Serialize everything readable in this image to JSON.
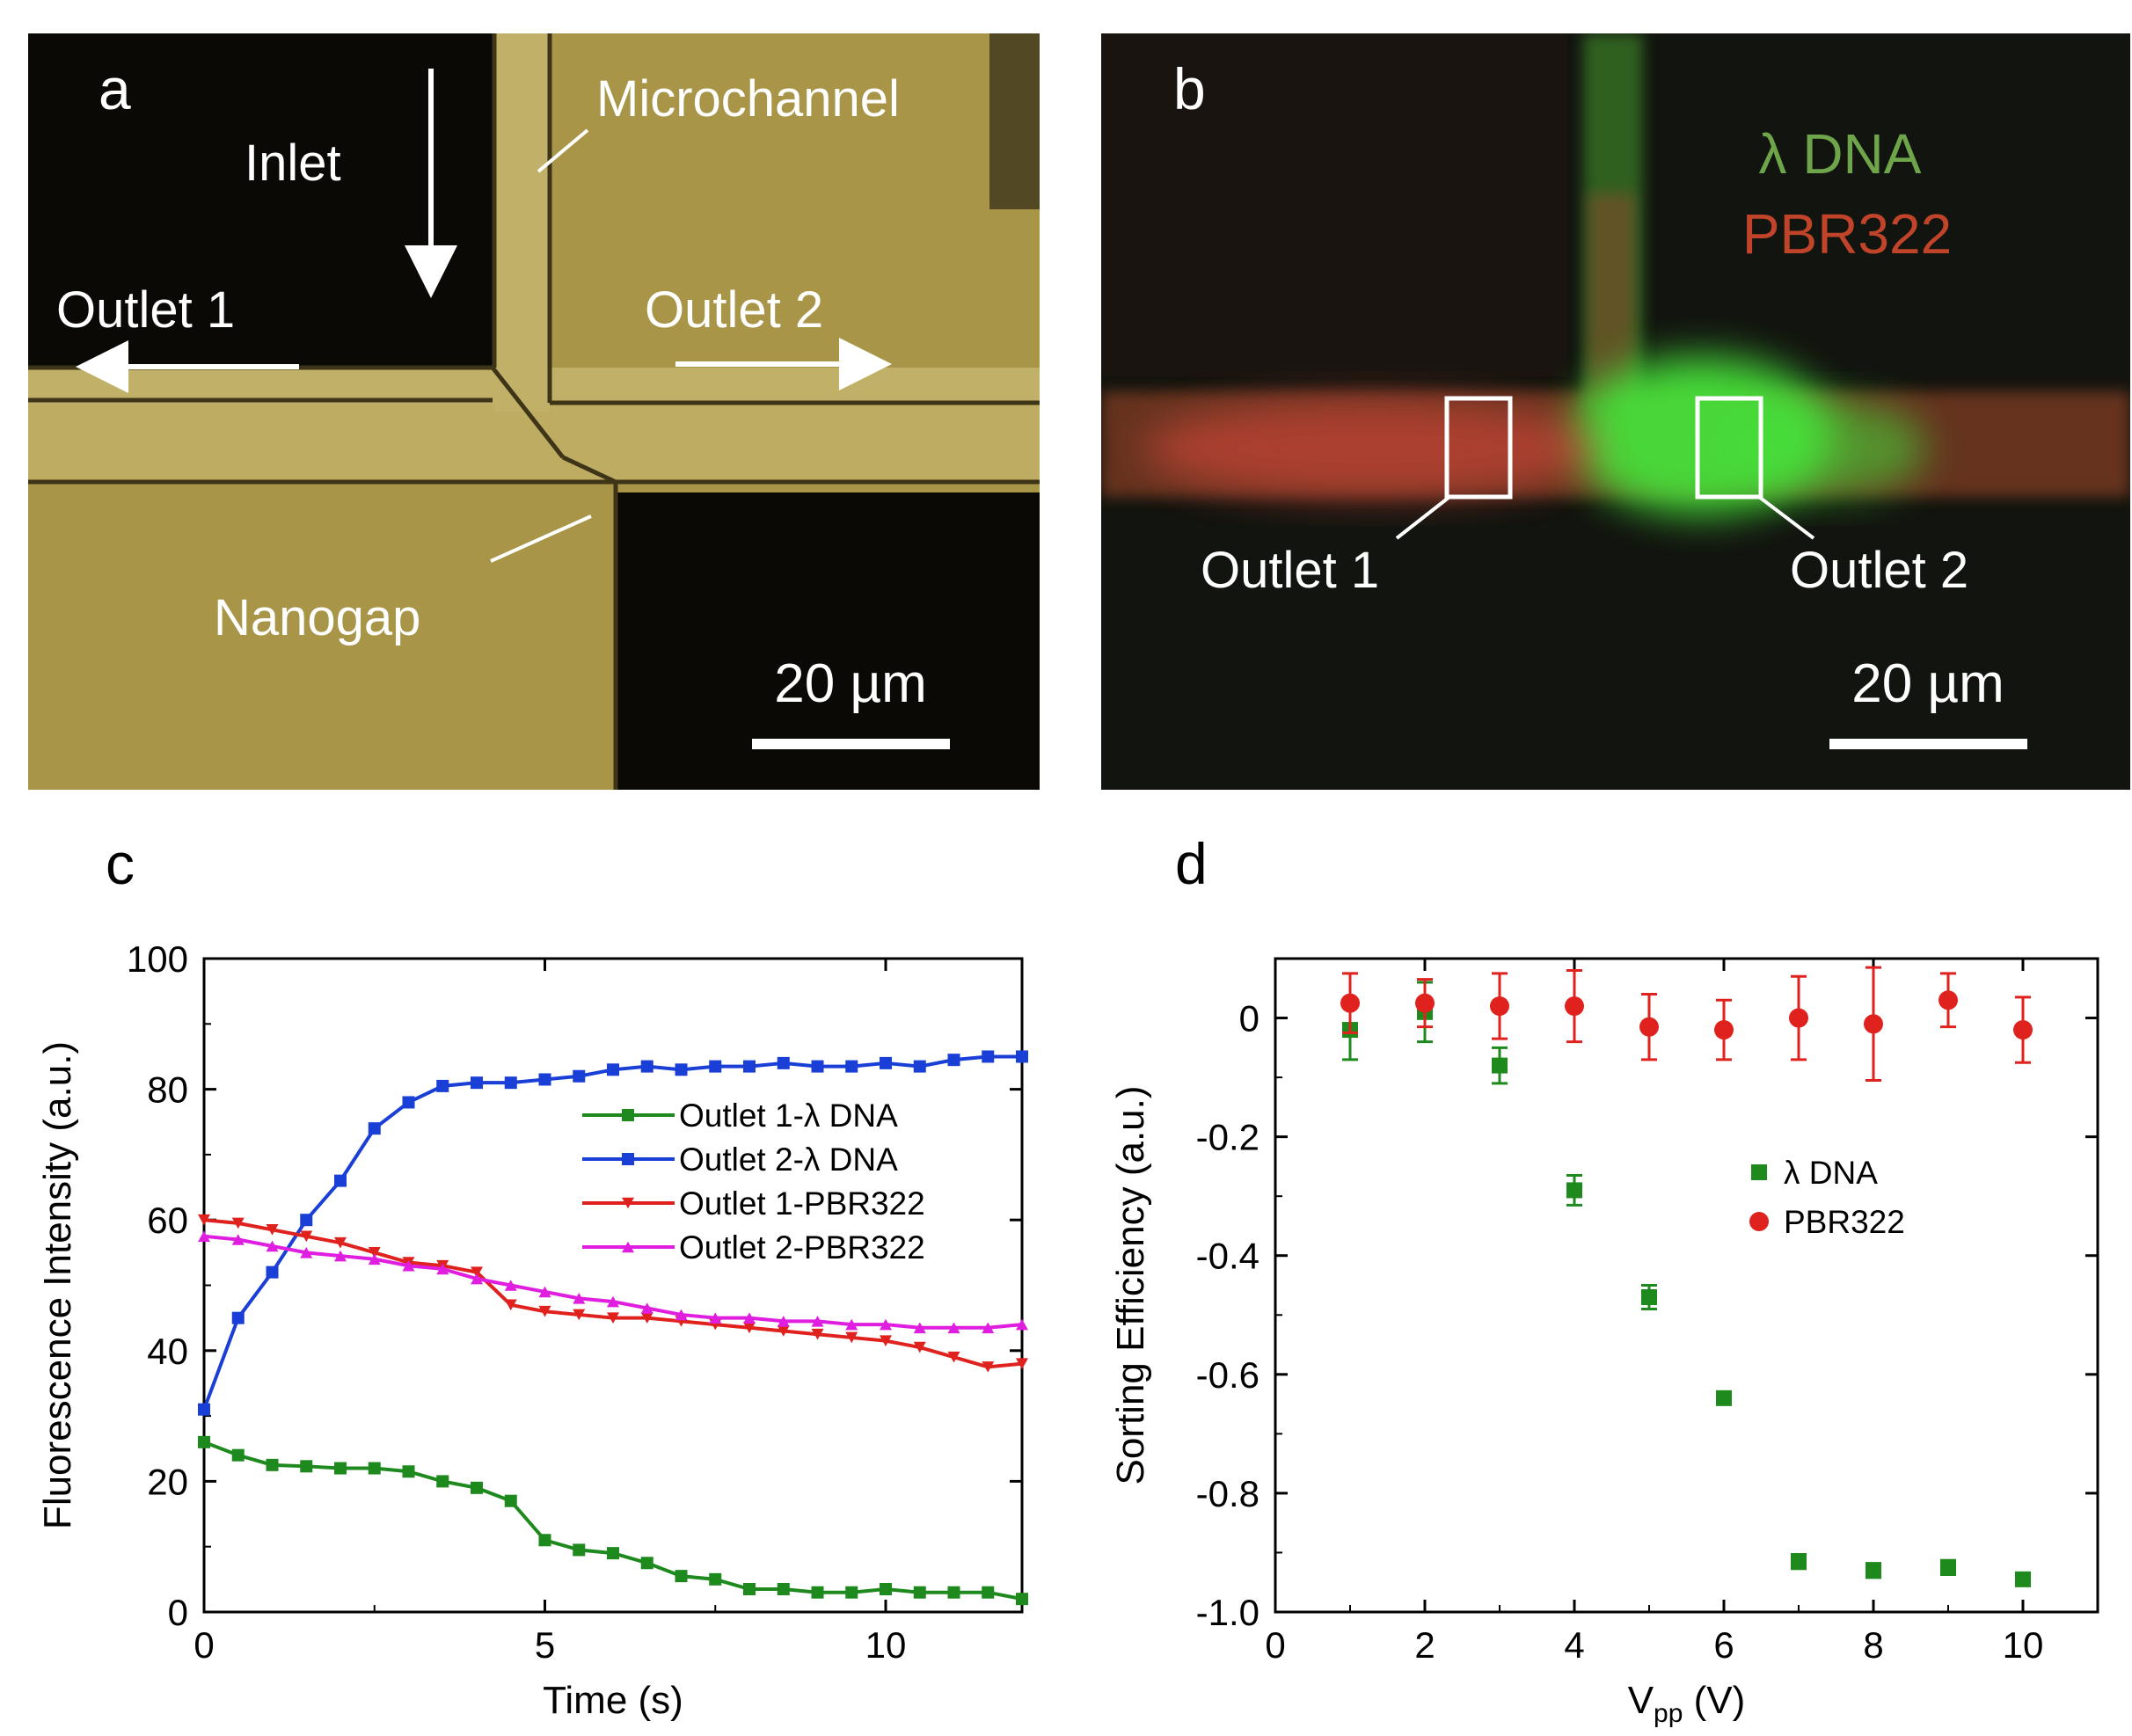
{
  "panels": {
    "a": {
      "letter": "a",
      "labels": {
        "inlet": "Inlet",
        "microchannel": "Microchannel",
        "outlet1": "Outlet 1",
        "outlet2": "Outlet 2",
        "nanogap": "Nanogap"
      },
      "scalebar": "20 µm",
      "colors": {
        "dark": "#0b0905",
        "chamber": "#a99548",
        "channel": "#c1b067",
        "edge": "#3e3518",
        "label": "#ffffff"
      }
    },
    "b": {
      "letter": "b",
      "legend": {
        "lambda": "λ DNA",
        "pbr": "PBR322"
      },
      "labels": {
        "outlet1": "Outlet 1",
        "outlet2": "Outlet 2"
      },
      "scalebar": "20 µm",
      "colors": {
        "bg": "#12140f",
        "lambda": "#6fa54a",
        "pbr": "#c0442a",
        "green_glow": "#47e03a",
        "red_glow": "#d2473a"
      }
    },
    "c": {
      "letter": "c"
    },
    "d": {
      "letter": "d"
    }
  },
  "chart_data": [
    {
      "panel": "c",
      "type": "line",
      "xlabel": "Time (s)",
      "ylabel": "Fluorescence Intensity (a.u.)",
      "xlim": [
        0,
        12
      ],
      "ylim": [
        0,
        100
      ],
      "xticks": [
        0,
        5,
        10
      ],
      "yticks": [
        0,
        20,
        40,
        60,
        80,
        100
      ],
      "legend_position": "center-right",
      "series": [
        {
          "name": "Outlet 1-λ DNA",
          "color": "#1e8a1e",
          "marker": "square",
          "x": [
            0,
            0.5,
            1,
            1.5,
            2,
            2.5,
            3,
            3.5,
            4,
            4.5,
            5,
            5.5,
            6,
            6.5,
            7,
            7.5,
            8,
            8.5,
            9,
            9.5,
            10,
            10.5,
            11,
            11.5,
            12
          ],
          "y": [
            26,
            24,
            22.5,
            22.3,
            22,
            22,
            21.5,
            20,
            19,
            17,
            11,
            9.5,
            9,
            7.5,
            5.5,
            5,
            3.5,
            3.5,
            3,
            3,
            3.5,
            3,
            3,
            3,
            2
          ]
        },
        {
          "name": "Outlet 2-λ DNA",
          "color": "#1a3fd6",
          "marker": "square",
          "x": [
            0,
            0.5,
            1,
            1.5,
            2,
            2.5,
            3,
            3.5,
            4,
            4.5,
            5,
            5.5,
            6,
            6.5,
            7,
            7.5,
            8,
            8.5,
            9,
            9.5,
            10,
            10.5,
            11,
            11.5,
            12
          ],
          "y": [
            31,
            45,
            52,
            60,
            66,
            74,
            78,
            80.5,
            81,
            81,
            81.5,
            82,
            83,
            83.5,
            83,
            83.5,
            83.5,
            84,
            83.5,
            83.5,
            84,
            83.5,
            84.5,
            85,
            85
          ]
        },
        {
          "name": "Outlet 1-PBR322",
          "color": "#e0221e",
          "marker": "triangle-down",
          "x": [
            0,
            0.5,
            1,
            1.5,
            2,
            2.5,
            3,
            3.5,
            4,
            4.5,
            5,
            5.5,
            6,
            6.5,
            7,
            7.5,
            8,
            8.5,
            9,
            9.5,
            10,
            10.5,
            11,
            11.5,
            12
          ],
          "y": [
            60,
            59.5,
            58.5,
            57.5,
            56.5,
            55,
            53.5,
            53,
            52,
            47,
            46,
            45.5,
            45,
            45,
            44.5,
            44,
            43.5,
            43,
            42.5,
            42,
            41.5,
            40.5,
            39,
            37.5,
            38
          ]
        },
        {
          "name": "Outlet 2-PBR322",
          "color": "#e01ee0",
          "marker": "triangle-up",
          "x": [
            0,
            0.5,
            1,
            1.5,
            2,
            2.5,
            3,
            3.5,
            4,
            4.5,
            5,
            5.5,
            6,
            6.5,
            7,
            7.5,
            8,
            8.5,
            9,
            9.5,
            10,
            10.5,
            11,
            11.5,
            12
          ],
          "y": [
            57.5,
            57,
            56,
            55,
            54.5,
            54,
            53,
            52.5,
            51,
            50,
            49,
            48,
            47.5,
            46.5,
            45.5,
            45,
            45,
            44.5,
            44.5,
            44,
            44,
            43.5,
            43.5,
            43.5,
            44
          ]
        }
      ]
    },
    {
      "panel": "d",
      "type": "scatter",
      "xlabel": "V",
      "xlabel_sub": "pp",
      "xlabel_unit": " (V)",
      "ylabel": "Sorting Efficiency (a.u.)",
      "xlim": [
        0,
        11
      ],
      "ylim": [
        -1.0,
        0.1
      ],
      "xticks": [
        0,
        2,
        4,
        6,
        8,
        10
      ],
      "yticks": [
        0,
        -0.2,
        -0.4,
        -0.6,
        -0.8,
        -1.0
      ],
      "ytick_labels": [
        "0",
        "-0.2",
        "-0.4",
        "-0.6",
        "-0.8",
        "-1.0"
      ],
      "legend_position": "center-right",
      "series": [
        {
          "name": "λ DNA",
          "color": "#1e8a1e",
          "marker": "square",
          "x": [
            1,
            2,
            3,
            4,
            5,
            6,
            7,
            8,
            9,
            10
          ],
          "y": [
            -0.02,
            0.01,
            -0.08,
            -0.29,
            -0.47,
            -0.64,
            -0.915,
            -0.93,
            -0.925,
            -0.945
          ],
          "err": [
            0.05,
            0.05,
            0.03,
            0.025,
            0.02,
            0.01,
            0.012,
            0.012,
            0.012,
            0.01
          ]
        },
        {
          "name": "PBR322",
          "color": "#e0221e",
          "marker": "circle",
          "x": [
            1,
            2,
            3,
            4,
            5,
            6,
            7,
            8,
            9,
            10
          ],
          "y": [
            0.025,
            0.025,
            0.02,
            0.02,
            -0.015,
            -0.02,
            0.0,
            -0.01,
            0.03,
            -0.02
          ],
          "err": [
            0.05,
            0.04,
            0.055,
            0.06,
            0.055,
            0.05,
            0.07,
            0.095,
            0.045,
            0.055
          ]
        }
      ]
    }
  ]
}
